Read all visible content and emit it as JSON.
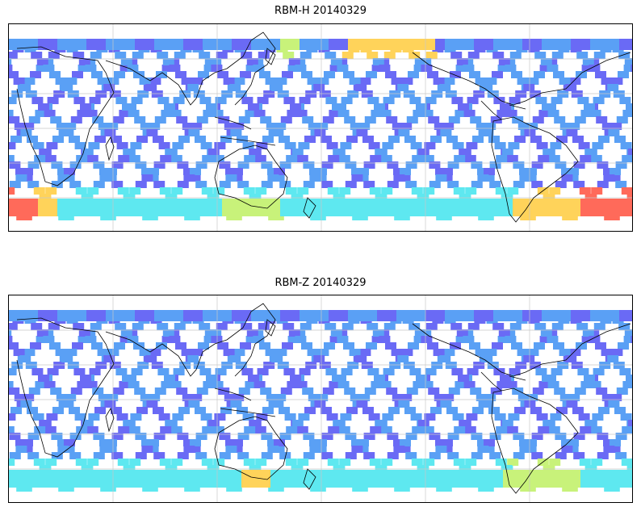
{
  "panels": [
    {
      "title": "RBM-H 20140329"
    },
    {
      "title": "RBM-Z 20140329"
    }
  ],
  "colors": {
    "low": "#6a6af5",
    "mid_low": "#5aa0f5",
    "mid": "#5ee8f0",
    "mid_high": "#c8f27a",
    "high": "#ffd35a",
    "max": "#ff6a5a",
    "coastline": "#000000",
    "grid": "#c8c8c8"
  },
  "icons": [
    "coastline-outline",
    "graticule-grid"
  ]
}
